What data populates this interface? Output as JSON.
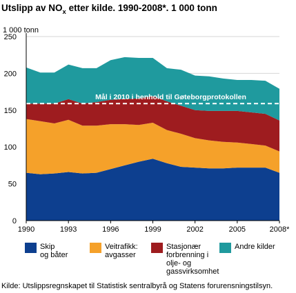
{
  "chart_data": {
    "type": "area",
    "stacked": true,
    "title_main": "Utslipp av NO",
    "title_sub": "x",
    "title_rest": " etter kilde. 1990-2008*. 1 000 tonn",
    "ylabel": "1 000 tonn",
    "ylim": [
      0,
      250
    ],
    "yticks": [
      "0",
      "50",
      "100",
      "150",
      "200",
      "250"
    ],
    "xlim": [
      1990,
      2008
    ],
    "xticks": [
      "1990",
      "1993",
      "1996",
      "1999",
      "2002",
      "2005",
      "2008*"
    ],
    "grid": true,
    "x": [
      1990,
      1991,
      1992,
      1993,
      1994,
      1995,
      1996,
      1997,
      1998,
      1999,
      2000,
      2001,
      2002,
      2003,
      2004,
      2005,
      2006,
      2007,
      2008
    ],
    "series": [
      {
        "name": "Skip og båter",
        "color": "#0d3f8f",
        "values": [
          65,
          63,
          64,
          66,
          64,
          65,
          70,
          75,
          80,
          84,
          78,
          73,
          72,
          71,
          71,
          72,
          72,
          72,
          65
        ]
      },
      {
        "name": "Veitrafikk: avgasser",
        "color": "#f5a12a",
        "values": [
          73,
          72,
          68,
          71,
          65,
          64,
          61,
          56,
          50,
          49,
          45,
          45,
          40,
          38,
          36,
          34,
          32,
          30,
          29
        ]
      },
      {
        "name": "Stasjonær forbrenning i olje- og gassvirksomhet",
        "color": "#9e1c1f",
        "values": [
          21,
          24,
          27,
          28,
          30,
          32,
          33,
          34,
          36,
          36,
          39,
          38,
          38,
          40,
          42,
          43,
          43,
          43,
          42
        ]
      },
      {
        "name": "Andre kilder",
        "color": "#1f9a9e",
        "values": [
          49,
          42,
          42,
          47,
          48,
          46,
          54,
          57,
          55,
          52,
          45,
          49,
          47,
          47,
          44,
          42,
          44,
          45,
          43
        ]
      }
    ],
    "goal_line": {
      "value": 159,
      "label": "Mål i 2010 i henhold til Gøteborgprotokollen"
    },
    "legend_position": "bottom",
    "legend": [
      {
        "lines": [
          "Skip",
          "og båter"
        ],
        "color": "#0d3f8f"
      },
      {
        "lines": [
          "Veitrafikk:",
          "avgasser"
        ],
        "color": "#f5a12a"
      },
      {
        "lines": [
          "Stasjonær",
          "forbrenning i",
          "olje- og",
          "gassvirksomhet"
        ],
        "color": "#9e1c1f"
      },
      {
        "lines": [
          "Andre kilder"
        ],
        "color": "#1f9a9e"
      }
    ],
    "source": "Kilde: Utslippsregnskapet til Statistisk sentralbyrå og Statens forurensningstilsyn."
  }
}
